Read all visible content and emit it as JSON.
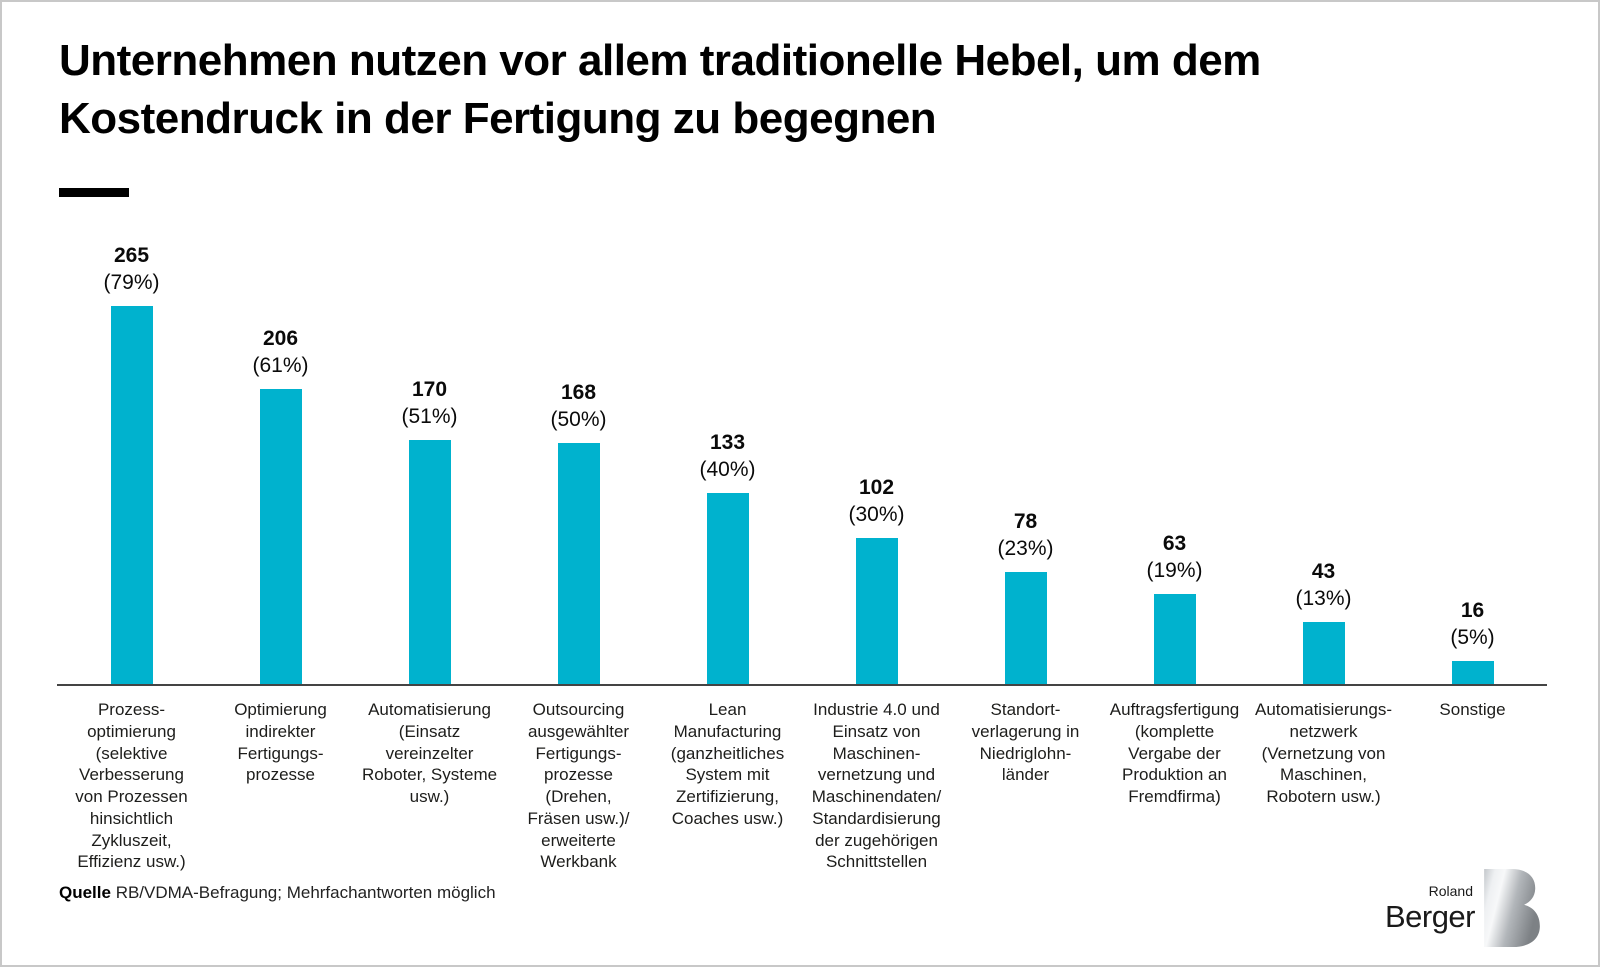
{
  "title": "Unternehmen nutzen vor allem traditionelle Hebel, um dem\nKostendruck in der Fertigung zu begegnen",
  "source": {
    "label": "Quelle",
    "text": " RB/VDMA-Befragung; Mehrfachantworten möglich"
  },
  "logo": {
    "top": "Roland",
    "bottom": "Berger",
    "mark": "b-lettermark-icon"
  },
  "colors": {
    "bar": "#00b2ce",
    "axis": "#444444",
    "page_border": "#c8c8c8",
    "title_text": "#000000"
  },
  "chart_data": {
    "type": "bar",
    "title": "Unternehmen nutzen vor allem traditionelle Hebel, um dem Kostendruck in der Fertigung zu begegnen",
    "xlabel": "",
    "ylabel": "",
    "ylim": [
      0,
      280
    ],
    "grid": false,
    "legend": false,
    "bar_color": "#00b2ce",
    "categories": [
      "Prozess-\noptimierung\n(selektive\nVerbesserung\nvon Prozessen\nhinsichtlich\nZykluszeit,\nEffizienz usw.)",
      "Optimierung\nindirekter\nFertigungs-\nprozesse",
      "Automatisierung\n(Einsatz\nvereinzelter\nRoboter, Systeme\nusw.)",
      "Outsourcing\nausgewählter\nFertigungs-\nprozesse\n(Drehen,\nFräsen usw.)/\nerweiterte\nWerkbank",
      "Lean\nManufacturing\n(ganzheitliches\nSystem mit\nZertifizierung,\nCoaches usw.)",
      "Industrie 4.0 und\nEinsatz von\nMaschinen-\nvernetzung und\nMaschinendaten/\nStandardisierung\nder zugehörigen\nSchnittstellen",
      "Standort-\nverlagerung in\nNiedriglohn-\nländer",
      "Auftragsfertigung\n(komplette\nVergabe der\nProduktion an\nFremdfirma)",
      "Automatisierungs-\nnetzwerk\n(Vernetzung von\nMaschinen,\nRobotern usw.)",
      "Sonstige"
    ],
    "values": [
      265,
      206,
      170,
      168,
      133,
      102,
      78,
      63,
      43,
      16
    ],
    "percent_labels": [
      "(79%)",
      "(61%)",
      "(51%)",
      "(50%)",
      "(40%)",
      "(30%)",
      "(23%)",
      "(19%)",
      "(13%)",
      "(5%)"
    ]
  }
}
